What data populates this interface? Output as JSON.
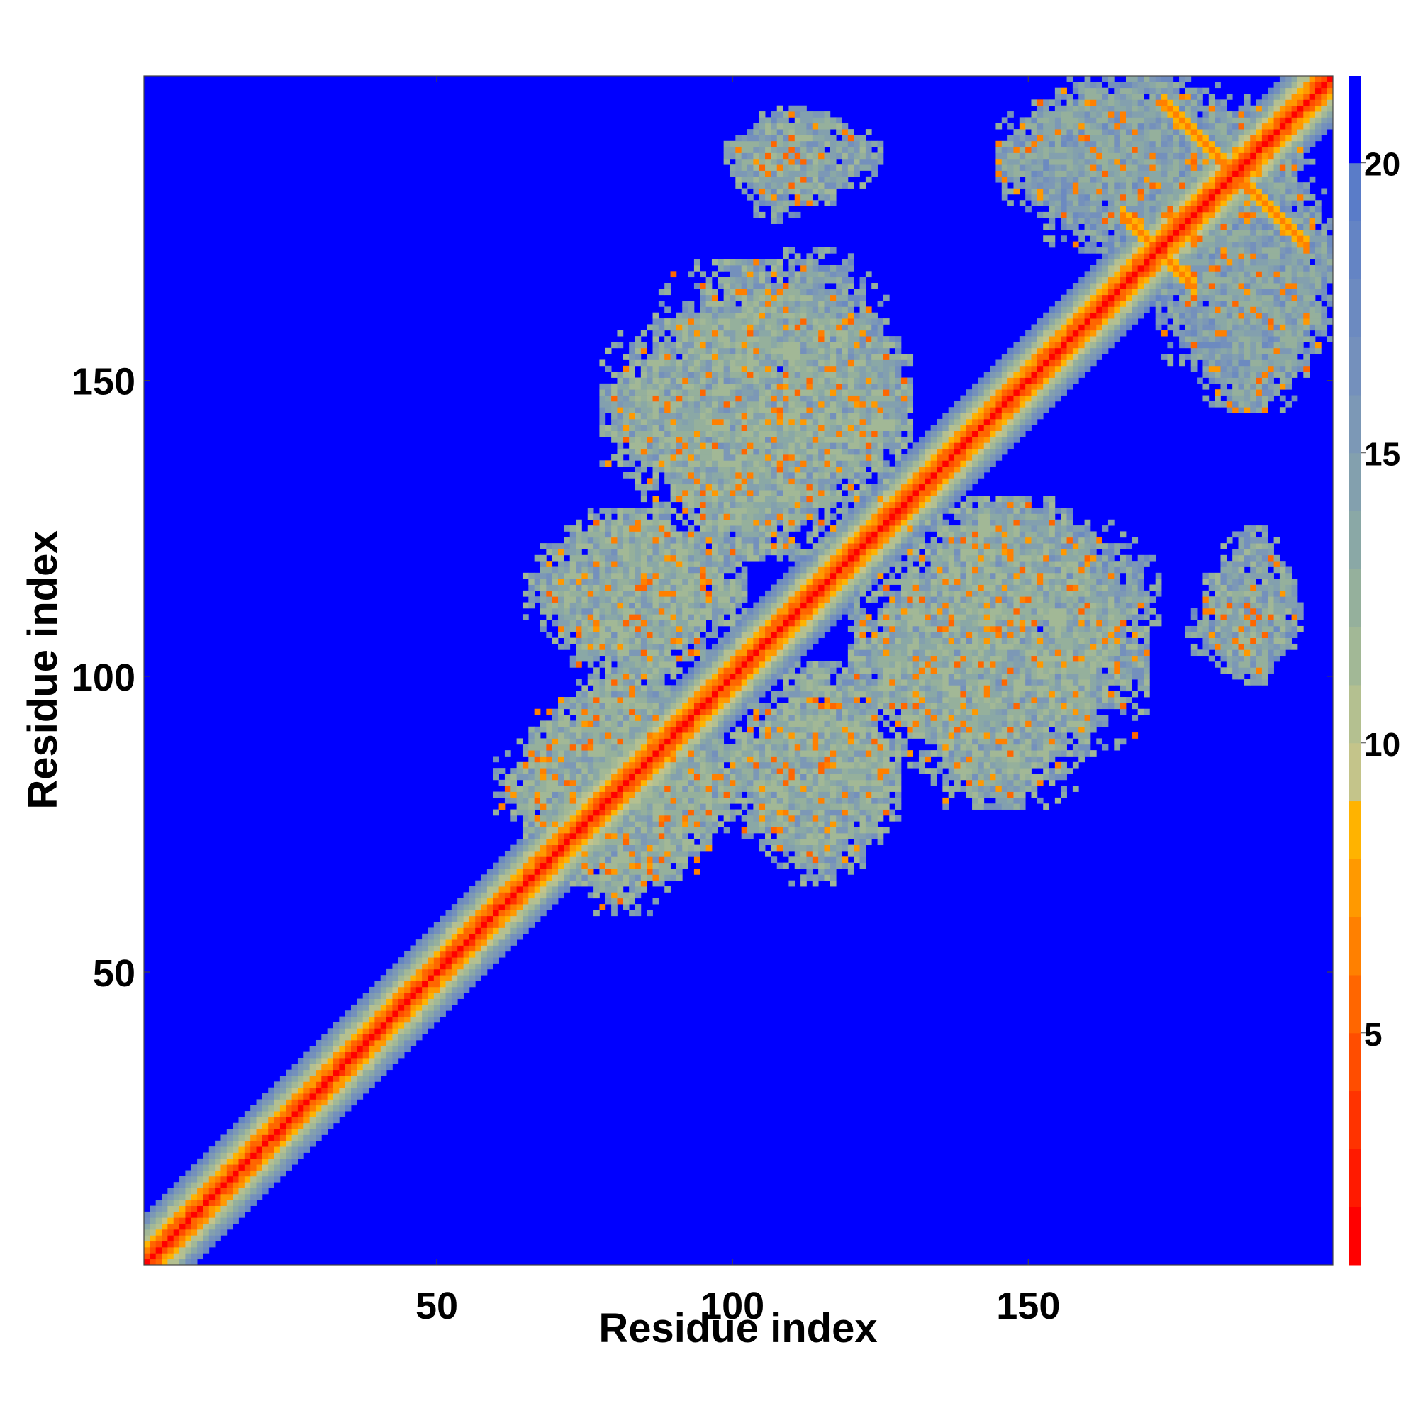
{
  "chart_data": {
    "type": "heatmap",
    "title": "",
    "xlabel": "Residue index",
    "ylabel": "Residue index",
    "n_residues": 201,
    "xlim": [
      1,
      201
    ],
    "ylim": [
      1,
      201
    ],
    "x_ticks": [
      50,
      100,
      150
    ],
    "y_ticks": [
      50,
      100,
      150
    ],
    "x_tick_labels": [
      "50",
      "100",
      "150"
    ],
    "y_tick_labels": [
      "50",
      "100",
      "150"
    ],
    "grid": false,
    "colorbar": {
      "placement": "right",
      "range": [
        1,
        21.5
      ],
      "ticks": [
        5,
        10,
        15,
        20
      ],
      "tick_labels": [
        "5",
        "10",
        "15",
        "20"
      ],
      "bands": [
        {
          "from": 1,
          "to": 2,
          "color": "#ff0000"
        },
        {
          "from": 2,
          "to": 3,
          "color": "#ff1a00"
        },
        {
          "from": 3,
          "to": 4,
          "color": "#ff3300"
        },
        {
          "from": 4,
          "to": 5,
          "color": "#ff4d00"
        },
        {
          "from": 5,
          "to": 6,
          "color": "#ff6600"
        },
        {
          "from": 6,
          "to": 7,
          "color": "#ff8000"
        },
        {
          "from": 7,
          "to": 8,
          "color": "#ff9900"
        },
        {
          "from": 8,
          "to": 9,
          "color": "#ffb300"
        },
        {
          "from": 9,
          "to": 10,
          "color": "#c4c48a"
        },
        {
          "from": 10,
          "to": 11,
          "color": "#b4c090"
        },
        {
          "from": 11,
          "to": 12,
          "color": "#a2b896"
        },
        {
          "from": 12,
          "to": 13,
          "color": "#95b09c"
        },
        {
          "from": 13,
          "to": 14,
          "color": "#8aa8a6"
        },
        {
          "from": 14,
          "to": 15,
          "color": "#83a0ae"
        },
        {
          "from": 15,
          "to": 16,
          "color": "#7c98b6"
        },
        {
          "from": 16,
          "to": 17,
          "color": "#7490bc"
        },
        {
          "from": 17,
          "to": 18,
          "color": "#6c8ac0"
        },
        {
          "from": 18,
          "to": 19,
          "color": "#6484c4"
        },
        {
          "from": 19,
          "to": 20,
          "color": "#5a7cc8"
        },
        {
          "from": 20,
          "to": 21.5,
          "color": "#0000ff"
        }
      ]
    },
    "features": [
      {
        "kind": "diagonal",
        "from": 1,
        "to": 201,
        "core_value": 1.5,
        "width": 8
      },
      {
        "kind": "x-pattern",
        "center": [
          185,
          185
        ],
        "arm_length": 12,
        "value": 6
      },
      {
        "kind": "x-pattern",
        "center": [
          172,
          172
        ],
        "arm_length": 6,
        "value": 6
      },
      {
        "kind": "blob",
        "x": [
          99,
          125
        ],
        "y": [
          180,
          196
        ],
        "mean_value": 14
      },
      {
        "kind": "blob",
        "x": [
          145,
          196
        ],
        "y": [
          177,
          201
        ],
        "mean_value": 15
      },
      {
        "kind": "blob",
        "x": [
          172,
          201
        ],
        "y": [
          145,
          180
        ],
        "mean_value": 15
      },
      {
        "kind": "blob",
        "x": [
          78,
          130
        ],
        "y": [
          120,
          170
        ],
        "mean_value": 14
      },
      {
        "kind": "blob",
        "x": [
          65,
          100
        ],
        "y": [
          100,
          128
        ],
        "mean_value": 14
      },
      {
        "kind": "blob",
        "x": [
          60,
          102
        ],
        "y": [
          65,
          98
        ],
        "mean_value": 14
      },
      {
        "kind": "blob",
        "x": [
          100,
          128
        ],
        "y": [
          68,
          102
        ],
        "mean_value": 14
      },
      {
        "kind": "blob",
        "x": [
          125,
          165
        ],
        "y": [
          80,
          130
        ],
        "mean_value": 14
      },
      {
        "kind": "blob",
        "x": [
          135,
          172
        ],
        "y": [
          100,
          128
        ],
        "mean_value": 15
      },
      {
        "kind": "blob",
        "x": [
          177,
          196
        ],
        "y": [
          100,
          116
        ],
        "mean_value": 15
      }
    ]
  }
}
